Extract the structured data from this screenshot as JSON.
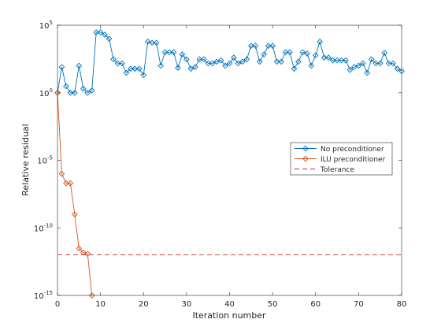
{
  "chart_data": {
    "type": "line",
    "title": "",
    "xlabel": "Iteration number",
    "ylabel": "Relative residual",
    "xlim": [
      0,
      80
    ],
    "ylim": [
      1e-15,
      100000.0
    ],
    "yscale": "log",
    "grid": false,
    "legend_position": "right",
    "x_ticks": [
      0,
      10,
      20,
      30,
      40,
      50,
      60,
      70,
      80
    ],
    "x_tick_labels": [
      "0",
      "10",
      "20",
      "30",
      "40",
      "50",
      "60",
      "70",
      "80"
    ],
    "y_ticks": [
      1e-15,
      1e-10,
      1e-05,
      1,
      100000.0
    ],
    "y_tick_labels": [
      {
        "base": "10",
        "exp": "-15"
      },
      {
        "base": "10",
        "exp": "-10"
      },
      {
        "base": "10",
        "exp": "-5"
      },
      {
        "base": "10",
        "exp": "0"
      },
      {
        "base": "10",
        "exp": "5"
      }
    ],
    "series": [
      {
        "name": "No preconditioner",
        "color": "#0072bd",
        "marker": "diamond",
        "line_style": "solid",
        "x": [
          0,
          1,
          2,
          3,
          4,
          5,
          6,
          7,
          8,
          9,
          10,
          11,
          12,
          13,
          14,
          15,
          16,
          17,
          18,
          19,
          20,
          21,
          22,
          23,
          24,
          25,
          26,
          27,
          28,
          29,
          30,
          31,
          32,
          33,
          34,
          35,
          36,
          37,
          38,
          39,
          40,
          41,
          42,
          43,
          44,
          45,
          46,
          47,
          48,
          49,
          50,
          51,
          52,
          53,
          54,
          55,
          56,
          57,
          58,
          59,
          60,
          61,
          62,
          63,
          64,
          65,
          66,
          67,
          68,
          69,
          70,
          71,
          72,
          73,
          74,
          75,
          76,
          77,
          78,
          79,
          80
        ],
        "y": [
          1,
          80,
          3,
          1,
          1,
          100,
          2,
          1,
          1.5,
          30000,
          30000,
          20000,
          10000,
          300,
          150,
          150,
          30,
          60,
          60,
          60,
          20,
          6000,
          5000,
          5000,
          100,
          1000,
          1000,
          1000,
          70,
          700,
          300,
          60,
          80,
          300,
          300,
          150,
          150,
          200,
          250,
          100,
          150,
          400,
          150,
          200,
          300,
          3000,
          3000,
          200,
          700,
          3000,
          3000,
          200,
          200,
          1000,
          1000,
          60,
          200,
          1000,
          800,
          100,
          600,
          6000,
          400,
          400,
          250,
          250,
          250,
          250,
          50,
          80,
          100,
          150,
          30,
          300,
          150,
          150,
          900,
          150,
          150,
          60,
          40
        ]
      },
      {
        "name": "ILU preconditioner",
        "color": "#d95319",
        "marker": "diamond",
        "line_style": "solid",
        "x": [
          0,
          1,
          2,
          3,
          4,
          5,
          6,
          7,
          8
        ],
        "y": [
          1,
          1e-06,
          2e-07,
          2e-07,
          1e-09,
          3e-12,
          1.5e-12,
          1.2e-12,
          1e-15
        ]
      },
      {
        "name": "Tolerance",
        "color": "#d62728",
        "marker": "none",
        "line_style": "dashed",
        "x": [
          0,
          80
        ],
        "y": [
          1e-12,
          1e-12
        ]
      }
    ]
  }
}
